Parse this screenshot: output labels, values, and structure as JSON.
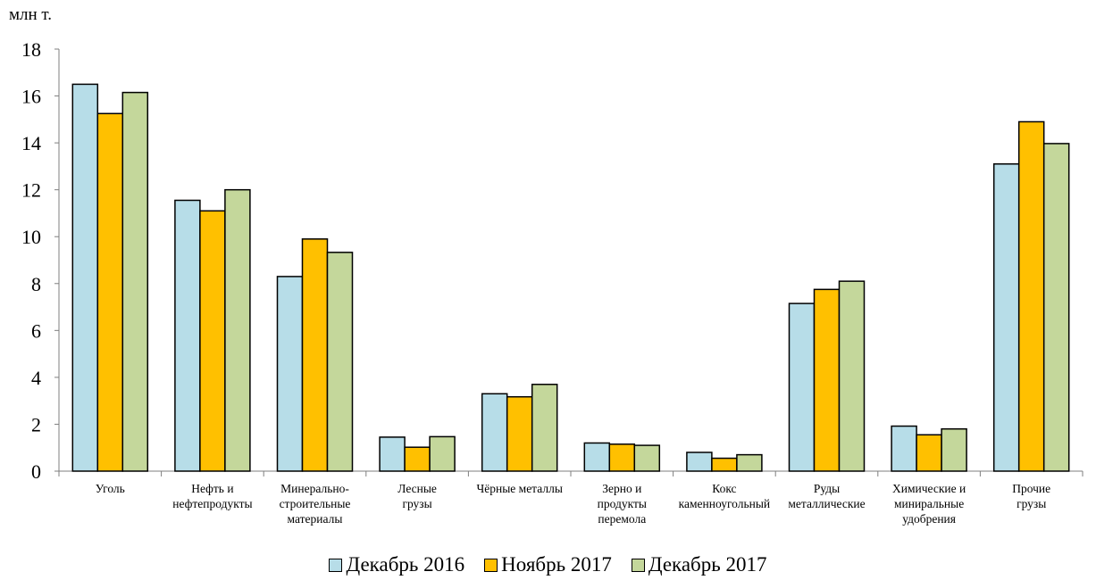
{
  "chart_data": {
    "type": "bar",
    "ylabel": "млн т.",
    "ylim": [
      0,
      18
    ],
    "yticks": [
      0,
      2,
      4,
      6,
      8,
      10,
      12,
      14,
      16,
      18
    ],
    "grid": false,
    "legend_position": "bottom",
    "categories": [
      [
        "Уголь"
      ],
      [
        "Нефть и",
        "нефтепродукты"
      ],
      [
        "Минерально-",
        "строительные",
        "материалы"
      ],
      [
        "Лесные",
        "грузы"
      ],
      [
        "Чёрные металлы"
      ],
      [
        "Зерно и",
        "продукты",
        "перемола"
      ],
      [
        "Кокс",
        "каменноугольный"
      ],
      [
        "Руды",
        "металлические"
      ],
      [
        "Химические и",
        "миниральные",
        "удобрения"
      ],
      [
        "Прочие",
        "грузы"
      ]
    ],
    "series": [
      {
        "name": "Декабрь 2016",
        "color": "#B7DDE8",
        "values": [
          16.5,
          11.55,
          8.3,
          1.45,
          3.3,
          1.2,
          0.8,
          7.15,
          1.92,
          13.1
        ]
      },
      {
        "name": "Ноябрь 2017",
        "color": "#FFC000",
        "values": [
          15.25,
          11.1,
          9.9,
          1.02,
          3.17,
          1.15,
          0.55,
          7.75,
          1.55,
          14.9
        ]
      },
      {
        "name": "Декабрь 2017",
        "color": "#C4D79B",
        "values": [
          16.15,
          12.0,
          9.33,
          1.47,
          3.7,
          1.1,
          0.7,
          8.1,
          1.8,
          13.97
        ]
      }
    ]
  }
}
